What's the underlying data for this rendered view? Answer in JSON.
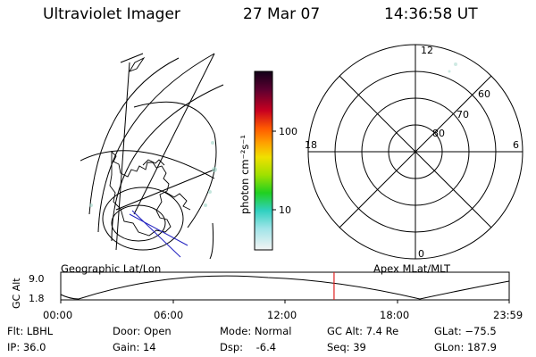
{
  "header": {
    "instrument": "Ultraviolet Imager",
    "date": "27 Mar 07",
    "time": "14:36:58 UT"
  },
  "colorbar": {
    "unit_label": "photon cm⁻²s⁻¹",
    "ticks": [
      "100",
      "10"
    ]
  },
  "polar": {
    "mlt_labels": {
      "top": "12",
      "left": "18",
      "right": "6",
      "bottom": "0"
    },
    "lat_labels": [
      "60",
      "70",
      "80"
    ]
  },
  "timeline": {
    "left_label": "Geographic Lat/Lon",
    "right_label": "Apex MLat/MLT",
    "axis_label": "GC Alt",
    "y_ticks": [
      "9.0",
      "1.8"
    ],
    "x_ticks": [
      "00:00",
      "06:00",
      "12:00",
      "18:00",
      "23:59"
    ],
    "marker_time_hours": 14.616
  },
  "info": {
    "row1": [
      "Flt: LBHL",
      "Door: Open",
      "Mode: Normal",
      "GC Alt: 7.4 Re",
      "GLat: −75.5"
    ],
    "row2": [
      "IP: 36.0",
      "Gain: 14",
      "Dsp:    -6.4",
      "Seq: 39",
      "GLon: 187.9"
    ]
  },
  "colors": {
    "marker": "#e02020",
    "coast": "#000000",
    "blue_line": "#2020c0"
  }
}
